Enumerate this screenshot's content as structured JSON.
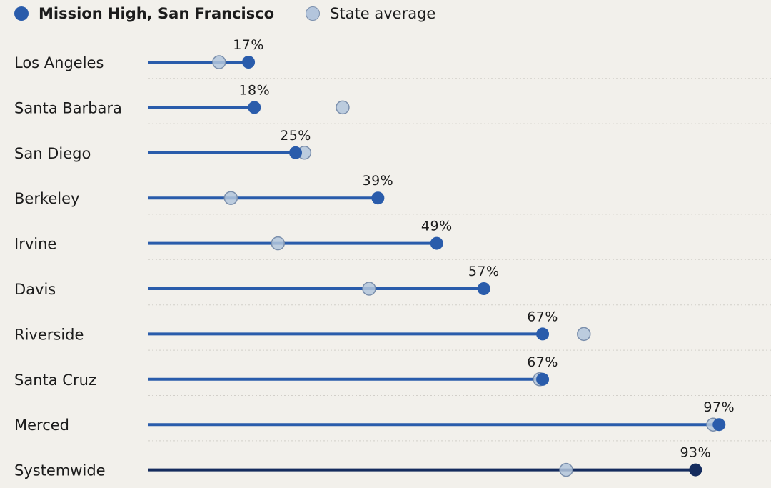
{
  "legend": {
    "primary_label": "Mission High, San Francisco",
    "secondary_label": "State average"
  },
  "colors": {
    "primary": "#2a5cab",
    "primary_dark": "#152c5e",
    "state_fill": "#b3c5dc",
    "state_stroke": "#7b8fac",
    "gridline": "#d2cfc9"
  },
  "chart_data": {
    "type": "dot-range",
    "xlim": [
      0,
      100
    ],
    "units": "%",
    "series": [
      {
        "name": "Mission High, San Francisco"
      },
      {
        "name": "State average"
      }
    ],
    "rows": [
      {
        "category": "Los Angeles",
        "mission": 17,
        "state": 12,
        "label": "17%"
      },
      {
        "category": "Santa Barbara",
        "mission": 18,
        "state": 33,
        "label": "18%"
      },
      {
        "category": "San Diego",
        "mission": 25,
        "state": 26.5,
        "label": "25%"
      },
      {
        "category": "Berkeley",
        "mission": 39,
        "state": 14,
        "label": "39%"
      },
      {
        "category": "Irvine",
        "mission": 49,
        "state": 22,
        "label": "49%"
      },
      {
        "category": "Davis",
        "mission": 57,
        "state": 37.5,
        "label": "57%"
      },
      {
        "category": "Riverside",
        "mission": 67,
        "state": 74,
        "label": "67%"
      },
      {
        "category": "Santa Cruz",
        "mission": 67,
        "state": 66.5,
        "label": "67%"
      },
      {
        "category": "Merced",
        "mission": 97,
        "state": 96,
        "label": "97%"
      },
      {
        "category": "Systemwide",
        "mission": 93,
        "state": 71,
        "label": "93%",
        "highlight": true
      }
    ]
  }
}
